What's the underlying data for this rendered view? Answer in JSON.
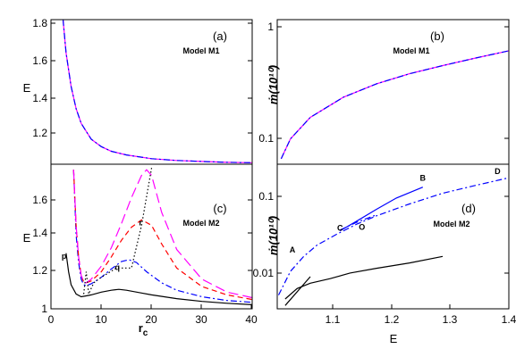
{
  "chart_data": [
    {
      "panel": "a",
      "type": "line",
      "panel_label": "(a)",
      "model_label": "Model M1",
      "ylabel": "E",
      "xlim": [
        0,
        40
      ],
      "ylim": [
        1.02,
        1.8
      ],
      "yticks": [
        "1.2",
        "1.4",
        "1.6",
        "1.8"
      ],
      "series": [
        {
          "color": "#ff00ff",
          "dash": "solid",
          "x": [
            2.4,
            3,
            4,
            5,
            6,
            8,
            10,
            12,
            15,
            20,
            25,
            30,
            35,
            40
          ],
          "y": [
            1.8,
            1.62,
            1.44,
            1.32,
            1.24,
            1.155,
            1.115,
            1.09,
            1.07,
            1.05,
            1.04,
            1.035,
            1.03,
            1.028
          ]
        },
        {
          "color": "#0000ff",
          "dash": "dashdot",
          "x": [
            2.4,
            3,
            4,
            5,
            6,
            8,
            10,
            12,
            15,
            20,
            25,
            30,
            35,
            40
          ],
          "y": [
            1.8,
            1.62,
            1.44,
            1.32,
            1.24,
            1.155,
            1.115,
            1.09,
            1.07,
            1.05,
            1.04,
            1.035,
            1.03,
            1.028
          ]
        }
      ]
    },
    {
      "panel": "b",
      "type": "line",
      "panel_label": "(b)",
      "model_label": "Model M1",
      "ylabel": "ṁ(10¹⁰)",
      "yscale": "log",
      "xlim": [
        1.05,
        1.4
      ],
      "ylim": [
        0.035,
        1.2
      ],
      "yticks": [
        "0.1",
        "1"
      ],
      "series": [
        {
          "color": "#ff00ff",
          "dash": "solid",
          "x": [
            1.056,
            1.07,
            1.1,
            1.15,
            1.2,
            1.25,
            1.3,
            1.35,
            1.4
          ],
          "y": [
            0.04,
            0.065,
            0.11,
            0.18,
            0.25,
            0.32,
            0.39,
            0.47,
            0.56
          ]
        },
        {
          "color": "#0000ff",
          "dash": "dashdot",
          "x": [
            1.056,
            1.07,
            1.1,
            1.15,
            1.2,
            1.25,
            1.3,
            1.35,
            1.4
          ],
          "y": [
            0.04,
            0.065,
            0.11,
            0.18,
            0.25,
            0.32,
            0.39,
            0.47,
            0.56
          ]
        }
      ]
    },
    {
      "panel": "c",
      "type": "line",
      "panel_label": "(c)",
      "model_label": "Model M2",
      "ylabel": "E",
      "xlabel": "r",
      "xlabel_sub": "c",
      "xlim": [
        0,
        40
      ],
      "ylim": [
        1.0,
        1.78
      ],
      "xticks": [
        "0",
        "10",
        "20",
        "30",
        "40"
      ],
      "yticks": [
        "1",
        "1.2",
        "1.4",
        "1.6"
      ],
      "annotations": [
        {
          "text": "p",
          "x": 2.6,
          "y": 1.27
        },
        {
          "text": "q",
          "x": 13.2,
          "y": 1.21
        },
        {
          "text": "r",
          "x": 17.8,
          "y": 1.45
        }
      ],
      "series": [
        {
          "color": "#000000",
          "dash": "solid",
          "x": [
            3,
            3.5,
            4,
            5,
            6,
            7,
            8,
            10,
            12,
            13.5,
            15,
            18,
            20,
            25,
            30,
            35,
            40
          ],
          "y": [
            1.3,
            1.2,
            1.13,
            1.08,
            1.065,
            1.07,
            1.075,
            1.09,
            1.1,
            1.105,
            1.1,
            1.085,
            1.075,
            1.055,
            1.04,
            1.03,
            1.022
          ]
        },
        {
          "color": "#0000ff",
          "dash": "dashdot",
          "x": [
            4.5,
            5,
            5.5,
            6,
            6.5,
            7,
            8,
            10,
            12,
            14,
            15.5,
            17,
            19,
            22,
            25,
            30,
            35,
            40
          ],
          "y": [
            1.75,
            1.4,
            1.25,
            1.16,
            1.13,
            1.125,
            1.135,
            1.17,
            1.215,
            1.255,
            1.265,
            1.25,
            1.2,
            1.14,
            1.1,
            1.065,
            1.045,
            1.035
          ]
        },
        {
          "color": "#ff0000",
          "dash": "dashed",
          "x": [
            4.5,
            5,
            5.5,
            6,
            6.5,
            7,
            8,
            10,
            12,
            14,
            16,
            18,
            20,
            22,
            25,
            30,
            35,
            40
          ],
          "y": [
            1.75,
            1.45,
            1.28,
            1.18,
            1.145,
            1.14,
            1.15,
            1.2,
            1.28,
            1.37,
            1.44,
            1.48,
            1.45,
            1.35,
            1.22,
            1.12,
            1.075,
            1.05
          ]
        },
        {
          "color": "#ff00ff",
          "dash": "longdash",
          "x": [
            4.5,
            5,
            5.5,
            6,
            6.5,
            7,
            8,
            10,
            12,
            14,
            16,
            18,
            19,
            20,
            22,
            25,
            30,
            35,
            40
          ],
          "y": [
            1.75,
            1.45,
            1.28,
            1.18,
            1.145,
            1.14,
            1.16,
            1.23,
            1.33,
            1.46,
            1.6,
            1.72,
            1.75,
            1.72,
            1.52,
            1.32,
            1.16,
            1.09,
            1.06
          ]
        },
        {
          "color": "#000000",
          "dash": "dotted",
          "x": [
            6.5,
            7,
            7.5,
            8.5,
            10,
            13,
            16,
            18,
            20
          ],
          "y": [
            1.08,
            1.2,
            1.08,
            1.14,
            1.17,
            1.22,
            1.22,
            1.45,
            1.76
          ]
        }
      ]
    },
    {
      "panel": "d",
      "type": "line",
      "panel_label": "(d)",
      "model_label": "Model M2",
      "ylabel": "ṁ(10¹⁰)",
      "xlabel": "E",
      "yscale": "log",
      "xlim": [
        1.05,
        1.4
      ],
      "ylim": [
        0.0025,
        0.35
      ],
      "xticks": [
        "1.1",
        "1.2",
        "1.3",
        "1.4"
      ],
      "yticks": [
        "0.01",
        "0.1"
      ],
      "annotations": [
        {
          "text": "A",
          "x": 1.073,
          "y": 0.017
        },
        {
          "text": "B",
          "x": 1.27,
          "y": 0.2
        },
        {
          "text": "C",
          "x": 1.145,
          "y": 0.036
        },
        {
          "text": "D",
          "x": 1.383,
          "y": 0.25
        },
        {
          "text": "O",
          "x": 1.178,
          "y": 0.037
        }
      ],
      "series": [
        {
          "color": "#000000",
          "dash": "solid",
          "x": [
            1.062,
            1.08,
            1.1,
            1.13,
            1.16,
            1.2,
            1.25,
            1.3
          ],
          "y": [
            0.0035,
            0.005,
            0.006,
            0.007,
            0.0085,
            0.01,
            0.012,
            0.015
          ]
        },
        {
          "color": "#000000",
          "dash": "solid",
          "x": [
            1.062,
            1.1
          ],
          "y": [
            0.0028,
            0.0075
          ]
        },
        {
          "color": "#0000ff",
          "dash": "dashdot",
          "x": [
            1.052,
            1.07,
            1.09,
            1.11,
            1.14,
            1.17,
            1.2,
            1.25,
            1.3,
            1.35,
            1.4
          ],
          "y": [
            0.004,
            0.009,
            0.015,
            0.022,
            0.032,
            0.045,
            0.06,
            0.09,
            0.13,
            0.17,
            0.22
          ]
        },
        {
          "color": "#0000ff",
          "dash": "solid",
          "x": [
            1.145,
            1.17,
            1.2,
            1.23,
            1.27
          ],
          "y": [
            0.036,
            0.05,
            0.075,
            0.11,
            0.16
          ]
        },
        {
          "color": "#0000ff",
          "dash": "dashdot",
          "x": [
            1.145,
            1.17,
            1.2
          ],
          "y": [
            0.037,
            0.048,
            0.062
          ]
        }
      ]
    }
  ]
}
